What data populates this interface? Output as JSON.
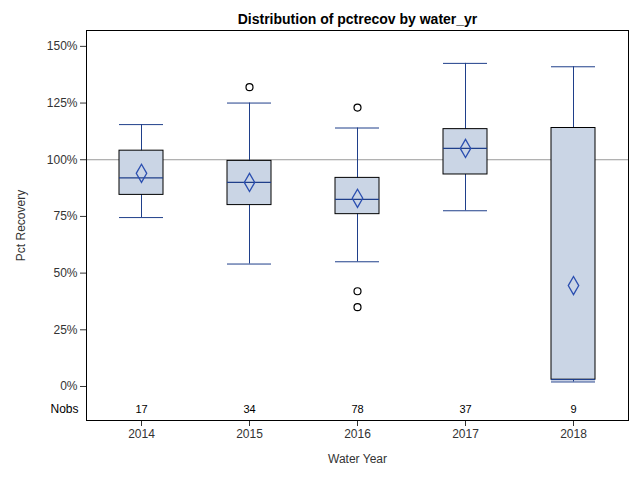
{
  "chart_data": {
    "type": "box",
    "title": "Distribution of pctrecov by water_yr",
    "x_label": "Water Year",
    "y_label": "Pct Recovery",
    "categories": [
      "2014",
      "2015",
      "2016",
      "2017",
      "2018"
    ],
    "whisker_low": [
      74.5,
      54,
      55,
      77.5,
      2
    ],
    "q1": [
      84.5,
      80,
      76,
      93.5,
      3
    ],
    "median": [
      92,
      90,
      82.5,
      105,
      3
    ],
    "q3": [
      104,
      99.5,
      92,
      113.5,
      114
    ],
    "whisker_high": [
      115.5,
      125,
      114,
      142.5,
      141
    ],
    "mean": [
      94,
      90,
      83,
      105,
      44.5
    ],
    "outliers": [
      [],
      [
        132
      ],
      [
        123,
        42,
        35
      ],
      [],
      []
    ],
    "nobs_label": "Nobs",
    "nobs": [
      17,
      34,
      78,
      37,
      9
    ],
    "reference_line": 100,
    "color": "#cad5e5",
    "ylim": [
      -15,
      157
    ],
    "yticks": [
      {
        "value": 0,
        "label": "0%"
      },
      {
        "value": 25,
        "label": "25%"
      },
      {
        "value": 50,
        "label": "50%"
      },
      {
        "value": 75,
        "label": "75%"
      },
      {
        "value": 100,
        "label": "100%"
      },
      {
        "value": 125,
        "label": "125%"
      },
      {
        "value": 150,
        "label": "150%"
      }
    ]
  }
}
